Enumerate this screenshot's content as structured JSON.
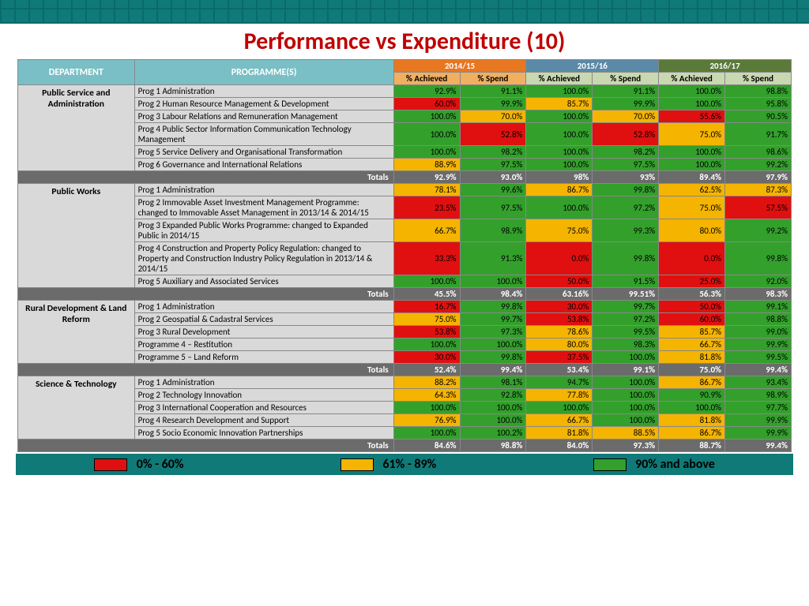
{
  "title": "Performance vs Expenditure (10)",
  "colors": {
    "red": "#e01010",
    "amber": "#f4b400",
    "green": "#33a02c",
    "totals_bg": "#6b6b6b",
    "dept_bg": "#d9d9d9",
    "header_teal": "#7abfc5",
    "y1_bg": "#e87722",
    "y2_bg": "#5b8aa8",
    "y3_bg": "#5a7a3a"
  },
  "thresholds": {
    "red_max": 60,
    "amber_max": 89
  },
  "columns": {
    "dept": "DEPARTMENT",
    "prog": "PROGRAMME(S)",
    "years": [
      {
        "label": "2014/15",
        "sub": [
          "% Achieved",
          "%  Spend"
        ]
      },
      {
        "label": "2015/16",
        "sub": [
          "% Achieved",
          "% Spend"
        ]
      },
      {
        "label": "2016/17",
        "sub": [
          "% Achieved",
          "% Spend"
        ]
      }
    ]
  },
  "legend": [
    {
      "swatch": "red",
      "label": "0% - 60%"
    },
    {
      "swatch": "amber",
      "label": "61% - 89%"
    },
    {
      "swatch": "green",
      "label": "90% and above"
    }
  ],
  "departments": [
    {
      "name": "Public Service and Administration",
      "rows": [
        {
          "prog": "Prog 1 Administration",
          "vals": [
            "92.9%",
            "91.1%",
            "100.0%",
            "91.1%",
            "100.0%",
            "98.8%"
          ]
        },
        {
          "prog": "Prog 2 Human Resource Management & Development",
          "vals": [
            "60.0%",
            "99.9%",
            "85.7%",
            "99.9%",
            "100.0%",
            "95.8%"
          ]
        },
        {
          "prog": "Prog 3 Labour Relations and Remuneration Management",
          "vals": [
            "100.0%",
            "70.0%",
            "100.0%",
            "70.0%",
            "55.6%",
            "90.5%"
          ]
        },
        {
          "prog": "Prog 4 Public Sector Information Communication Technology Management",
          "vals": [
            "100.0%",
            "52.8%",
            "100.0%",
            "52.8%",
            "75.0%",
            "91.7%"
          ]
        },
        {
          "prog": "Prog 5 Service Delivery and Organisational Transformation",
          "vals": [
            "100.0%",
            "98.2%",
            "100.0%",
            "98.2%",
            "100.0%",
            "98.6%"
          ]
        },
        {
          "prog": "Prog 6 Governance and International Relations",
          "vals": [
            "88.9%",
            "97.5%",
            "100.0%",
            "97.5%",
            "100.0%",
            "99.2%"
          ]
        }
      ],
      "totals": [
        "92.9%",
        "93.0%",
        "98%",
        "93%",
        "89.4%",
        "97.9%"
      ]
    },
    {
      "name": "Public Works",
      "rows": [
        {
          "prog": "Prog 1 Administration",
          "vals": [
            "78.1%",
            "99.6%",
            "86.7%",
            "99.8%",
            "62.5%",
            "87.3%"
          ]
        },
        {
          "prog": "Prog 2 Immovable Asset Investment Management Programme: changed to Immovable Asset Management in 2013/14 & 2014/15",
          "vals": [
            "23.5%",
            "97.5%",
            "100.0%",
            "97.2%",
            "75.0%",
            "57.5%"
          ]
        },
        {
          "prog": "Prog 3 Expanded Public Works Programme: changed to Expanded Public in 2014/15",
          "vals": [
            "66.7%",
            "98.9%",
            "75.0%",
            "99.3%",
            "80.0%",
            "99.2%"
          ]
        },
        {
          "prog": "Prog 4 Construction and Property Policy Regulation: changed to Property and Construction Industry Policy Regulation in 2013/14 & 2014/15",
          "vals": [
            "33.3%",
            "91.3%",
            "0.0%",
            "99.8%",
            "0.0%",
            "99.8%"
          ]
        },
        {
          "prog": "Prog 5 Auxiliary and Associated Services",
          "vals": [
            "100.0%",
            "100.0%",
            "50.0%",
            "91.5%",
            "25.0%",
            "92.0%"
          ]
        }
      ],
      "totals": [
        "45.5%",
        "98.4%",
        "63.16%",
        "99.51%",
        "56.3%",
        "98.3%"
      ]
    },
    {
      "name": "Rural Development & Land Reform",
      "rows": [
        {
          "prog": "Prog 1 Administration",
          "vals": [
            "16.7%",
            "99.8%",
            "30.0%",
            "99.7%",
            "50.0%",
            "99.1%"
          ]
        },
        {
          "prog": "Prog 2 Geospatial & Cadastral Services",
          "vals": [
            "75.0%",
            "99.7%",
            "53.8%",
            "97.2%",
            "60.0%",
            "98.8%"
          ]
        },
        {
          "prog": "Prog 3 Rural Development",
          "vals": [
            "53.8%",
            "97.3%",
            "78.6%",
            "99.5%",
            "85.7%",
            "99.0%"
          ]
        },
        {
          "prog": "Programme 4 – Restitution",
          "vals": [
            "100.0%",
            "100.0%",
            "80.0%",
            "98.3%",
            "66.7%",
            "99.9%"
          ]
        },
        {
          "prog": "Programme 5 – Land Reform",
          "vals": [
            "30.0%",
            "99.8%",
            "37.5%",
            "100.0%",
            "81.8%",
            "99.5%"
          ]
        }
      ],
      "totals": [
        "52.4%",
        "99.4%",
        "53.4%",
        "99.1%",
        "75.0%",
        "99.4%"
      ]
    },
    {
      "name": "Science & Technology",
      "rows": [
        {
          "prog": "Prog 1 Administration",
          "vals": [
            "88.2%",
            "98.1%",
            "94.7%",
            "100.0%",
            "86.7%",
            "93.4%"
          ]
        },
        {
          "prog": "Prog 2 Technology Innovation",
          "vals": [
            "64.3%",
            "92.8%",
            "77.8%",
            "100.0%",
            "90.9%",
            "98.9%"
          ]
        },
        {
          "prog": "Prog 3 International Cooperation and Resources",
          "vals": [
            "100.0%",
            "100.0%",
            "100.0%",
            "100.0%",
            "100.0%",
            "97.7%"
          ]
        },
        {
          "prog": "Prog 4 Research Development and Support",
          "vals": [
            "76.9%",
            "100.0%",
            "66.7%",
            "100.0%",
            "81.8%",
            "99.9%"
          ]
        },
        {
          "prog": "Prog 5 Socio Economic Innovation Partnerships",
          "vals": [
            "100.0%",
            "100.2%",
            "81.8%",
            "88.5%",
            "86.7%",
            "99.9%"
          ]
        }
      ],
      "totals": [
        "84.6%",
        "98.8%",
        "84.0%",
        "97.3%",
        "88.7%",
        "99.4%"
      ]
    }
  ],
  "totals_label": "Totals"
}
